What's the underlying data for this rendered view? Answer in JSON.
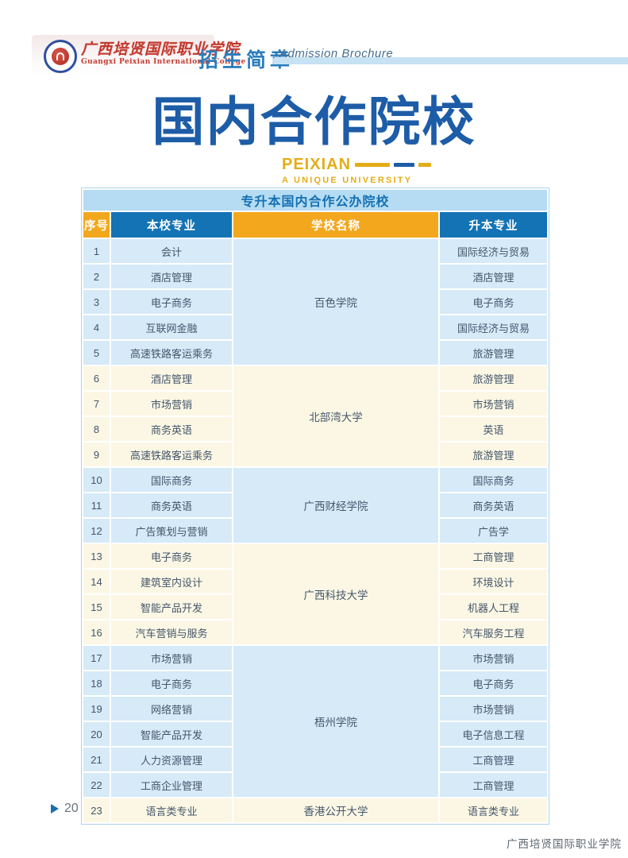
{
  "header": {
    "college_name_cn": "广西培贤国际职业学院",
    "college_name_en": "Guangxi Peixian International College",
    "brochure_cn": "招生简章",
    "brochure_en": "Admission Brochure"
  },
  "title": {
    "main": "国内合作院校",
    "brand": "PEIXIAN",
    "tagline": "A UNIQUE UNIVERSITY"
  },
  "table": {
    "title": "专升本国内合作公办院校",
    "columns": [
      "序号",
      "本校专业",
      "学校名称",
      "升本专业"
    ],
    "groups": [
      {
        "school": "百色学院",
        "rows": [
          {
            "no": "1",
            "major": "会计",
            "target": "国际经济与贸易"
          },
          {
            "no": "2",
            "major": "酒店管理",
            "target": "酒店管理"
          },
          {
            "no": "3",
            "major": "电子商务",
            "target": "电子商务"
          },
          {
            "no": "4",
            "major": "互联网金融",
            "target": "国际经济与贸易"
          },
          {
            "no": "5",
            "major": "高速铁路客运乘务",
            "target": "旅游管理"
          }
        ]
      },
      {
        "school": "北部湾大学",
        "rows": [
          {
            "no": "6",
            "major": "酒店管理",
            "target": "旅游管理"
          },
          {
            "no": "7",
            "major": "市场营销",
            "target": "市场营销"
          },
          {
            "no": "8",
            "major": "商务英语",
            "target": "英语"
          },
          {
            "no": "9",
            "major": "高速铁路客运乘务",
            "target": "旅游管理"
          }
        ]
      },
      {
        "school": "广西财经学院",
        "rows": [
          {
            "no": "10",
            "major": "国际商务",
            "target": "国际商务"
          },
          {
            "no": "11",
            "major": "商务英语",
            "target": "商务英语"
          },
          {
            "no": "12",
            "major": "广告策划与营销",
            "target": "广告学"
          }
        ]
      },
      {
        "school": "广西科技大学",
        "rows": [
          {
            "no": "13",
            "major": "电子商务",
            "target": "工商管理"
          },
          {
            "no": "14",
            "major": "建筑室内设计",
            "target": "环境设计"
          },
          {
            "no": "15",
            "major": "智能产品开发",
            "target": "机器人工程"
          },
          {
            "no": "16",
            "major": "汽车营销与服务",
            "target": "汽车服务工程"
          }
        ]
      },
      {
        "school": "梧州学院",
        "rows": [
          {
            "no": "17",
            "major": "市场营销",
            "target": "市场营销"
          },
          {
            "no": "18",
            "major": "电子商务",
            "target": "电子商务"
          },
          {
            "no": "19",
            "major": "网络营销",
            "target": "市场营销"
          },
          {
            "no": "20",
            "major": "智能产品开发",
            "target": "电子信息工程"
          },
          {
            "no": "21",
            "major": "人力资源管理",
            "target": "工商管理"
          },
          {
            "no": "22",
            "major": "工商企业管理",
            "target": "工商管理"
          }
        ]
      },
      {
        "school": "香港公开大学",
        "rows": [
          {
            "no": "23",
            "major": "语言类专业",
            "target": "语言类专业"
          }
        ]
      }
    ]
  },
  "footer": {
    "page_number": "20",
    "watermark": "广西培贤国际职业学院"
  },
  "colors": {
    "title_blue": "#1d5ca7",
    "brand_gold": "#e4ad17",
    "header_gold": "#f3a71d",
    "header_blue": "#1373b5",
    "table_title_bg": "#b5dcf2",
    "row_blue": "#d6eaf8",
    "row_cream": "#fbf7e4"
  }
}
